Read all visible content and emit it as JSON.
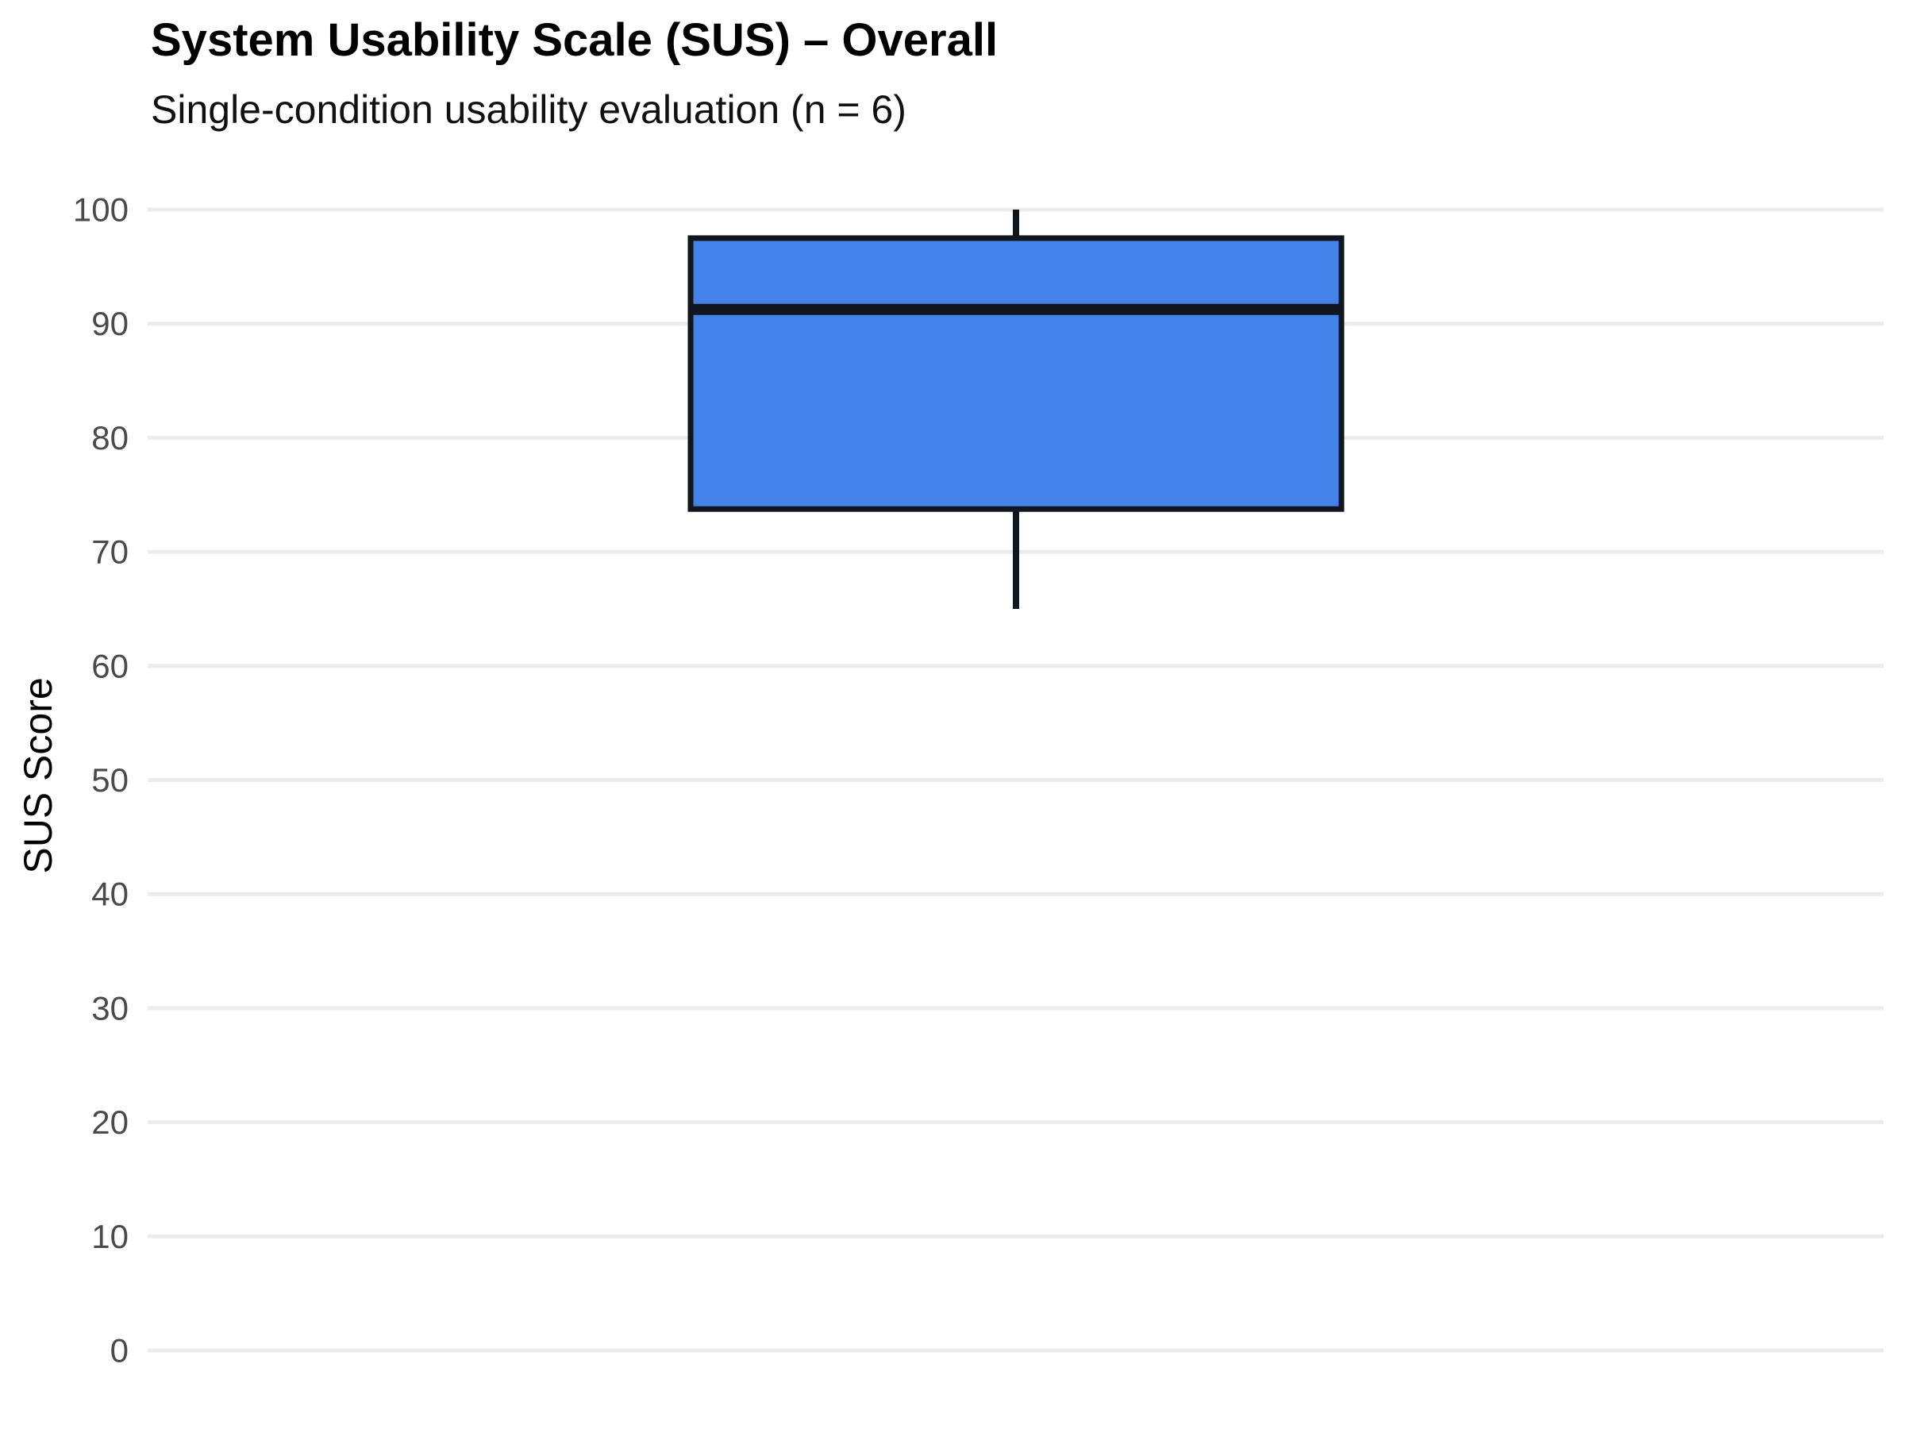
{
  "header": {
    "title": "System Usability Scale (SUS) – Overall",
    "subtitle": "Single-condition usability evaluation (n = 6)"
  },
  "chart_data": {
    "type": "box",
    "title": "System Usability Scale (SUS) – Overall",
    "subtitle": "Single-condition usability evaluation (n = 6)",
    "xlabel": "",
    "ylabel": "SUS Score",
    "ylim": [
      0,
      100
    ],
    "yticks": [
      100,
      90,
      80,
      70,
      60,
      50,
      40,
      30,
      20,
      10,
      0
    ],
    "grid": true,
    "legend": false,
    "n": 6,
    "series": [
      {
        "min": 65,
        "q1": 73.75,
        "median": 91.25,
        "q3": 97.5,
        "max": 100,
        "outliers": []
      }
    ],
    "colors": {
      "box_fill": "#4482e9",
      "box_border": "#11151d",
      "gridline": "#ececec",
      "tick_label": "#4a4a4a"
    }
  }
}
